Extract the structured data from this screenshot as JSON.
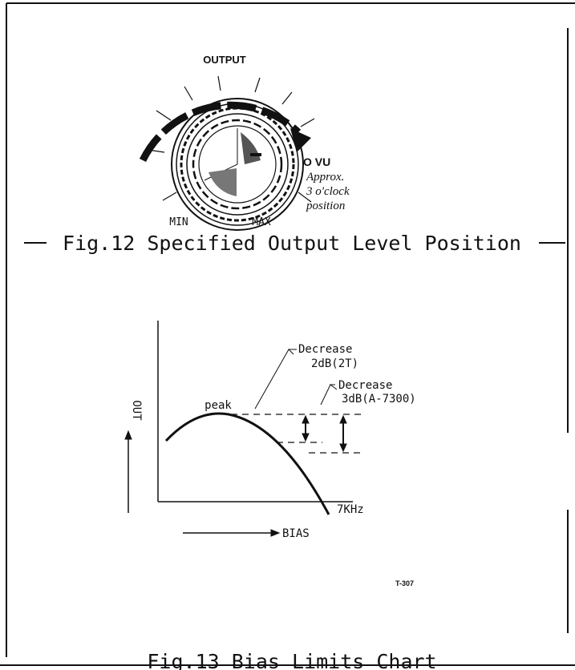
{
  "figure12": {
    "dial_label": "OUTPUT",
    "min_label": "MIN",
    "max_label": "MAX",
    "level_label": "O VU",
    "note": [
      "Approx.",
      "3 o'clock",
      "position"
    ],
    "caption": "Fig.12 Specified Output Level Position"
  },
  "figure13": {
    "peak_label": "peak",
    "decrease_2t": [
      "Decrease",
      "2dB(2T)"
    ],
    "decrease_a7300": [
      "Decrease",
      "3dB(A-7300)"
    ],
    "y_axis_label": "OUT",
    "x_axis_label": "BIAS",
    "curve_label": "7KHz",
    "code": "T-307",
    "caption": "Fig.13 Bias Limits Chart"
  }
}
